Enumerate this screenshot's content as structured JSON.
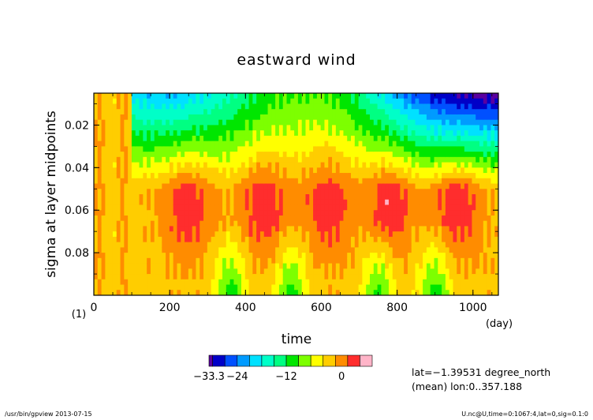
{
  "chart_data": {
    "type": "heatmap",
    "title": "eastward wind",
    "xlabel": "time",
    "xunit": "(day)",
    "ylabel": "sigma at layer midpoints",
    "yunit": "(1)",
    "xlim": [
      0,
      1067
    ],
    "ylim": [
      0.005,
      0.1
    ],
    "y_inverted": true,
    "x_ticks": [
      "0",
      "200",
      "400",
      "600",
      "800",
      "1000"
    ],
    "y_ticks": [
      "0.02",
      "0.04",
      "0.06",
      "0.08"
    ],
    "colorbar": {
      "tick_labels": [
        "−33.3",
        "−24",
        "−12",
        "0"
      ],
      "colors": [
        "#5a00a0",
        "#0000c8",
        "#0050ff",
        "#009bff",
        "#00e1ff",
        "#00ffc8",
        "#00ff82",
        "#00e600",
        "#7dff00",
        "#ffff00",
        "#ffcd00",
        "#ff8c00",
        "#ff2d2d",
        "#ffb4c8"
      ]
    },
    "annotations": [
      "lat=−1.39531 degree_north",
      "(mean) lon:0..357.188"
    ]
  },
  "footer": {
    "left": "/usr/bin/gpview  2013-07-15",
    "right": "U.nc@U,time=0:1067:4,lat=0,sig=0.1:0"
  }
}
